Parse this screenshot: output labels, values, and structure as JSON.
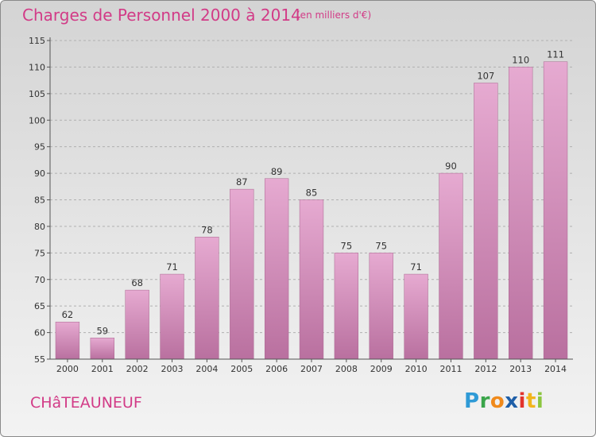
{
  "header": {
    "title": "Charges de Personnel 2000 à 2014",
    "subtitle": "(en milliers d'€)"
  },
  "footer": {
    "commune": "CHâTEAUNEUF",
    "logo_letters": [
      {
        "char": "P",
        "color": "#2f9ad6"
      },
      {
        "char": "r",
        "color": "#3aa54a"
      },
      {
        "char": "o",
        "color": "#f08a1c"
      },
      {
        "char": "x",
        "color": "#1f5fa8"
      },
      {
        "char": "i",
        "color": "#e2342c"
      },
      {
        "char": "t",
        "color": "#f1b51c"
      },
      {
        "char": "i",
        "color": "#8cc63f"
      }
    ]
  },
  "colors": {
    "bar": "#de9ec7",
    "bar_dark": "#b9709f",
    "accent": "#d23b87"
  },
  "chart_data": {
    "type": "bar",
    "categories": [
      "2000",
      "2001",
      "2002",
      "2003",
      "2004",
      "2005",
      "2006",
      "2007",
      "2008",
      "2009",
      "2010",
      "2011",
      "2012",
      "2013",
      "2014"
    ],
    "values": [
      62,
      59,
      68,
      71,
      78,
      87,
      89,
      85,
      75,
      75,
      71,
      90,
      107,
      110,
      111
    ],
    "data_labels": [
      "62",
      "59",
      "68",
      "71",
      "78",
      "87",
      "89",
      "85",
      "75",
      "75",
      "71",
      "90",
      "107",
      "110",
      "111"
    ],
    "title": "Charges de Personnel 2000 à 2014",
    "xlabel": "",
    "ylabel": "",
    "ylim": [
      55,
      115
    ],
    "yticks": [
      55,
      60,
      65,
      70,
      75,
      80,
      85,
      90,
      95,
      100,
      105,
      110,
      115
    ],
    "grid": true,
    "legend": "none"
  }
}
